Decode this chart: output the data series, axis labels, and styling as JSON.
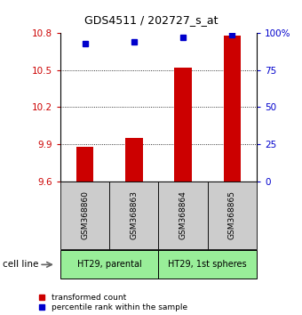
{
  "title": "GDS4511 / 202727_s_at",
  "samples": [
    "GSM368860",
    "GSM368863",
    "GSM368864",
    "GSM368865"
  ],
  "transformed_counts": [
    9.88,
    9.95,
    10.52,
    10.78
  ],
  "percentile_ranks": [
    93,
    94,
    97,
    99
  ],
  "y_min": 9.6,
  "y_max": 10.8,
  "y_ticks": [
    9.6,
    9.9,
    10.2,
    10.5,
    10.8
  ],
  "y_right_ticks": [
    0,
    25,
    50,
    75,
    100
  ],
  "y_right_labels": [
    "0",
    "25",
    "50",
    "75",
    "100%"
  ],
  "bar_color": "#cc0000",
  "dot_color": "#0000cc",
  "cell_line_groups": [
    {
      "label": "HT29, parental",
      "start": 0,
      "end": 2,
      "color": "#99ee99"
    },
    {
      "label": "HT29, 1st spheres",
      "start": 2,
      "end": 4,
      "color": "#99ee99"
    }
  ],
  "legend_bar_label": "transformed count",
  "legend_dot_label": "percentile rank within the sample",
  "bar_width": 0.35,
  "background_color": "#ffffff",
  "sample_box_color": "#cccccc",
  "cell_line_label": "cell line"
}
